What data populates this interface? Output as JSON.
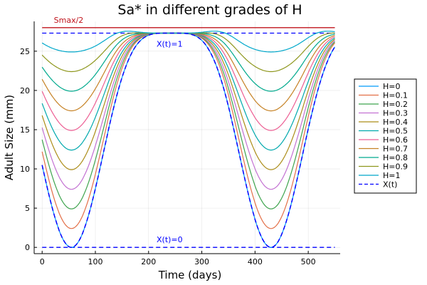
{
  "chart_data": {
    "type": "line",
    "title": "Sa* in different grades of H",
    "xlabel": "Time (days)",
    "ylabel": "Adult Size (mm)",
    "xlim": [
      -15,
      560
    ],
    "ylim": [
      -0.8,
      28.8
    ],
    "xticks": [
      0,
      100,
      200,
      300,
      400,
      500
    ],
    "yticks": [
      0,
      5,
      10,
      15,
      20,
      25
    ],
    "grid": true,
    "legend_position": "right",
    "top_line": {
      "label": "Smax/2",
      "y": 28.0,
      "color": "#c0141c"
    },
    "series": [
      {
        "name": "H=0",
        "color": "#009AFA",
        "dash": false,
        "offset": 0,
        "dip": 27.0
      },
      {
        "name": "H=0.1",
        "color": "#E36F47",
        "dash": false,
        "offset": 2.4,
        "dip": 27.0
      },
      {
        "name": "H=0.2",
        "color": "#3EA44E",
        "dash": false,
        "offset": 4.9,
        "dip": 27.0
      },
      {
        "name": "H=0.3",
        "color": "#C371D2",
        "dash": false,
        "offset": 7.4,
        "dip": 27.0
      },
      {
        "name": "H=0.4",
        "color": "#AC8D18",
        "dash": false,
        "offset": 9.9,
        "dip": 27.0
      },
      {
        "name": "H=0.5",
        "color": "#00A9AD",
        "dash": false,
        "offset": 12.4,
        "dip": 27.0
      },
      {
        "name": "H=0.6",
        "color": "#ED5E93",
        "dash": false,
        "offset": 14.9,
        "dip": 27.0
      },
      {
        "name": "H=0.7",
        "color": "#C68225",
        "dash": false,
        "offset": 17.4,
        "dip": 27.0
      },
      {
        "name": "H=0.8",
        "color": "#00A98D",
        "dash": false,
        "offset": 19.9,
        "dip": 27.0
      },
      {
        "name": "H=0.9",
        "color": "#8E971D",
        "dash": false,
        "offset": 22.4,
        "dip": 27.0
      },
      {
        "name": "H=1",
        "color": "#00A8CB",
        "dash": false,
        "offset": 24.9,
        "dip": 27.0
      },
      {
        "name": "X(t)",
        "color": "#0000FF",
        "dash": true,
        "offset": 0,
        "dip": 27.0
      }
    ],
    "ref_lines": [
      {
        "label": "X(t)=1",
        "y": 27.3,
        "color": "#0000FF"
      },
      {
        "label": "X(t)=0",
        "y": 0.0,
        "color": "#0000FF"
      }
    ]
  }
}
